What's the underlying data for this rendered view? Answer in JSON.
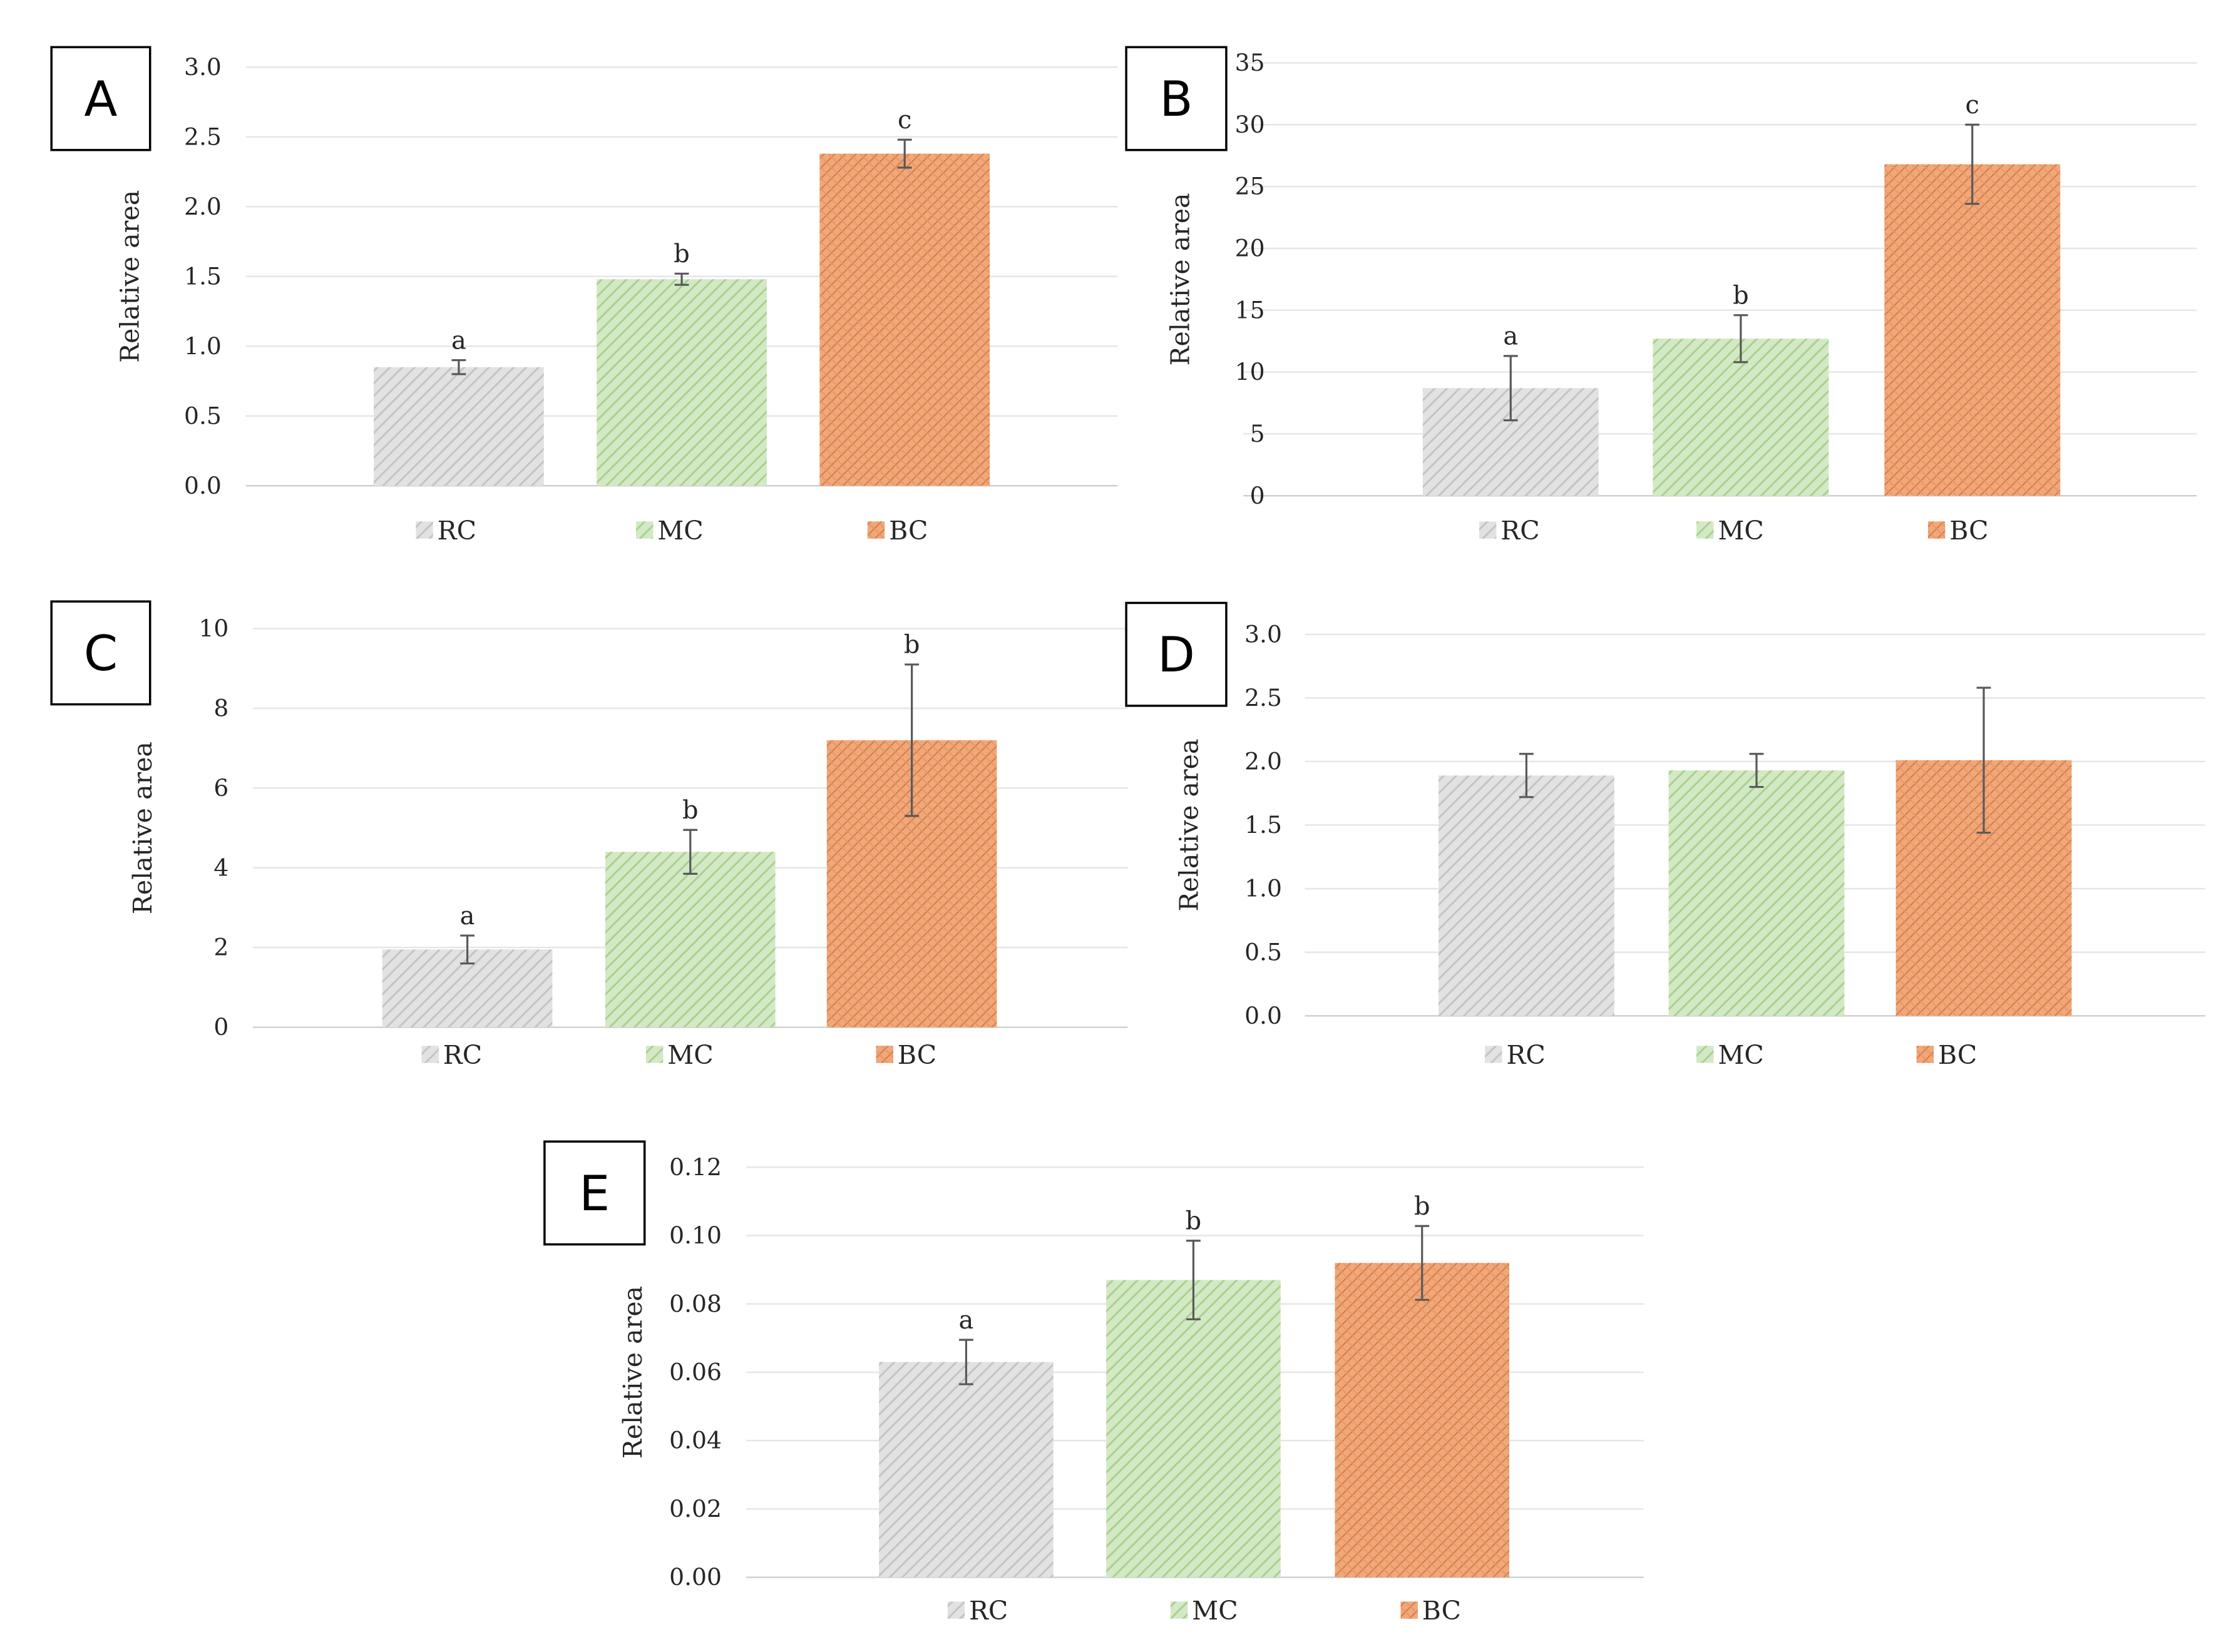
{
  "colors": {
    "RC": "#d9d9d9",
    "MC": "#c5e0b4",
    "BC": "#f4b183",
    "RC_stroke": "#bdbdbd",
    "MC_stroke": "#a9d18e",
    "BC_stroke": "#d9875a",
    "grid": "#e6e6e6",
    "error_bar": "#595959"
  },
  "chart_data": [
    {
      "panel": "A",
      "type": "bar",
      "categories": [
        "RC",
        "MC",
        "BC"
      ],
      "values": [
        0.85,
        1.48,
        2.38
      ],
      "errors": [
        0.05,
        0.04,
        0.1
      ],
      "letters": [
        "a",
        "b",
        "c"
      ],
      "ylabel": "Relative area",
      "yticks": [
        "0.0",
        "0.5",
        "1.0",
        "1.5",
        "2.0",
        "2.5",
        "3.0"
      ],
      "ylim": [
        0,
        3
      ],
      "legend": [
        "RC",
        "MC",
        "BC"
      ],
      "legend_position": "bottom",
      "grid": true
    },
    {
      "panel": "B",
      "type": "bar",
      "categories": [
        "RC",
        "MC",
        "BC"
      ],
      "values": [
        8.7,
        12.7,
        26.8
      ],
      "errors": [
        2.6,
        1.9,
        3.2
      ],
      "letters": [
        "a",
        "b",
        "c"
      ],
      "ylabel": "Relative area",
      "yticks": [
        "0",
        "5",
        "10",
        "15",
        "20",
        "25",
        "30",
        "35"
      ],
      "ylim": [
        0,
        35
      ],
      "legend": [
        "RC",
        "MC",
        "BC"
      ],
      "legend_position": "bottom",
      "grid": true
    },
    {
      "panel": "C",
      "type": "bar",
      "categories": [
        "RC",
        "MC",
        "BC"
      ],
      "values": [
        1.95,
        4.4,
        7.2
      ],
      "errors": [
        0.35,
        0.55,
        1.9
      ],
      "letters": [
        "a",
        "b",
        "b"
      ],
      "ylabel": "Relative area",
      "yticks": [
        "0",
        "2",
        "4",
        "6",
        "8",
        "10"
      ],
      "ylim": [
        0,
        10
      ],
      "legend": [
        "RC",
        "MC",
        "BC"
      ],
      "legend_position": "bottom",
      "grid": true
    },
    {
      "panel": "D",
      "type": "bar",
      "categories": [
        "RC",
        "MC",
        "BC"
      ],
      "values": [
        1.89,
        1.93,
        2.01
      ],
      "errors": [
        0.17,
        0.13,
        0.57
      ],
      "letters": [
        "",
        "",
        ""
      ],
      "ylabel": "Relative area",
      "yticks": [
        "0.0",
        "0.5",
        "1.0",
        "1.5",
        "2.0",
        "2.5",
        "3.0"
      ],
      "ylim": [
        0,
        3
      ],
      "legend": [
        "RC",
        "MC",
        "BC"
      ],
      "legend_position": "bottom",
      "grid": true
    },
    {
      "panel": "E",
      "type": "bar",
      "categories": [
        "RC",
        "MC",
        "BC"
      ],
      "values": [
        0.063,
        0.087,
        0.092
      ],
      "errors": [
        0.0065,
        0.0115,
        0.0108
      ],
      "letters": [
        "a",
        "b",
        "b"
      ],
      "ylabel": "Relative area",
      "yticks": [
        "0.00",
        "0.02",
        "0.04",
        "0.06",
        "0.08",
        "0.10",
        "0.12"
      ],
      "ylim": [
        0,
        0.12
      ],
      "legend": [
        "RC",
        "MC",
        "BC"
      ],
      "legend_position": "bottom",
      "grid": true
    }
  ]
}
